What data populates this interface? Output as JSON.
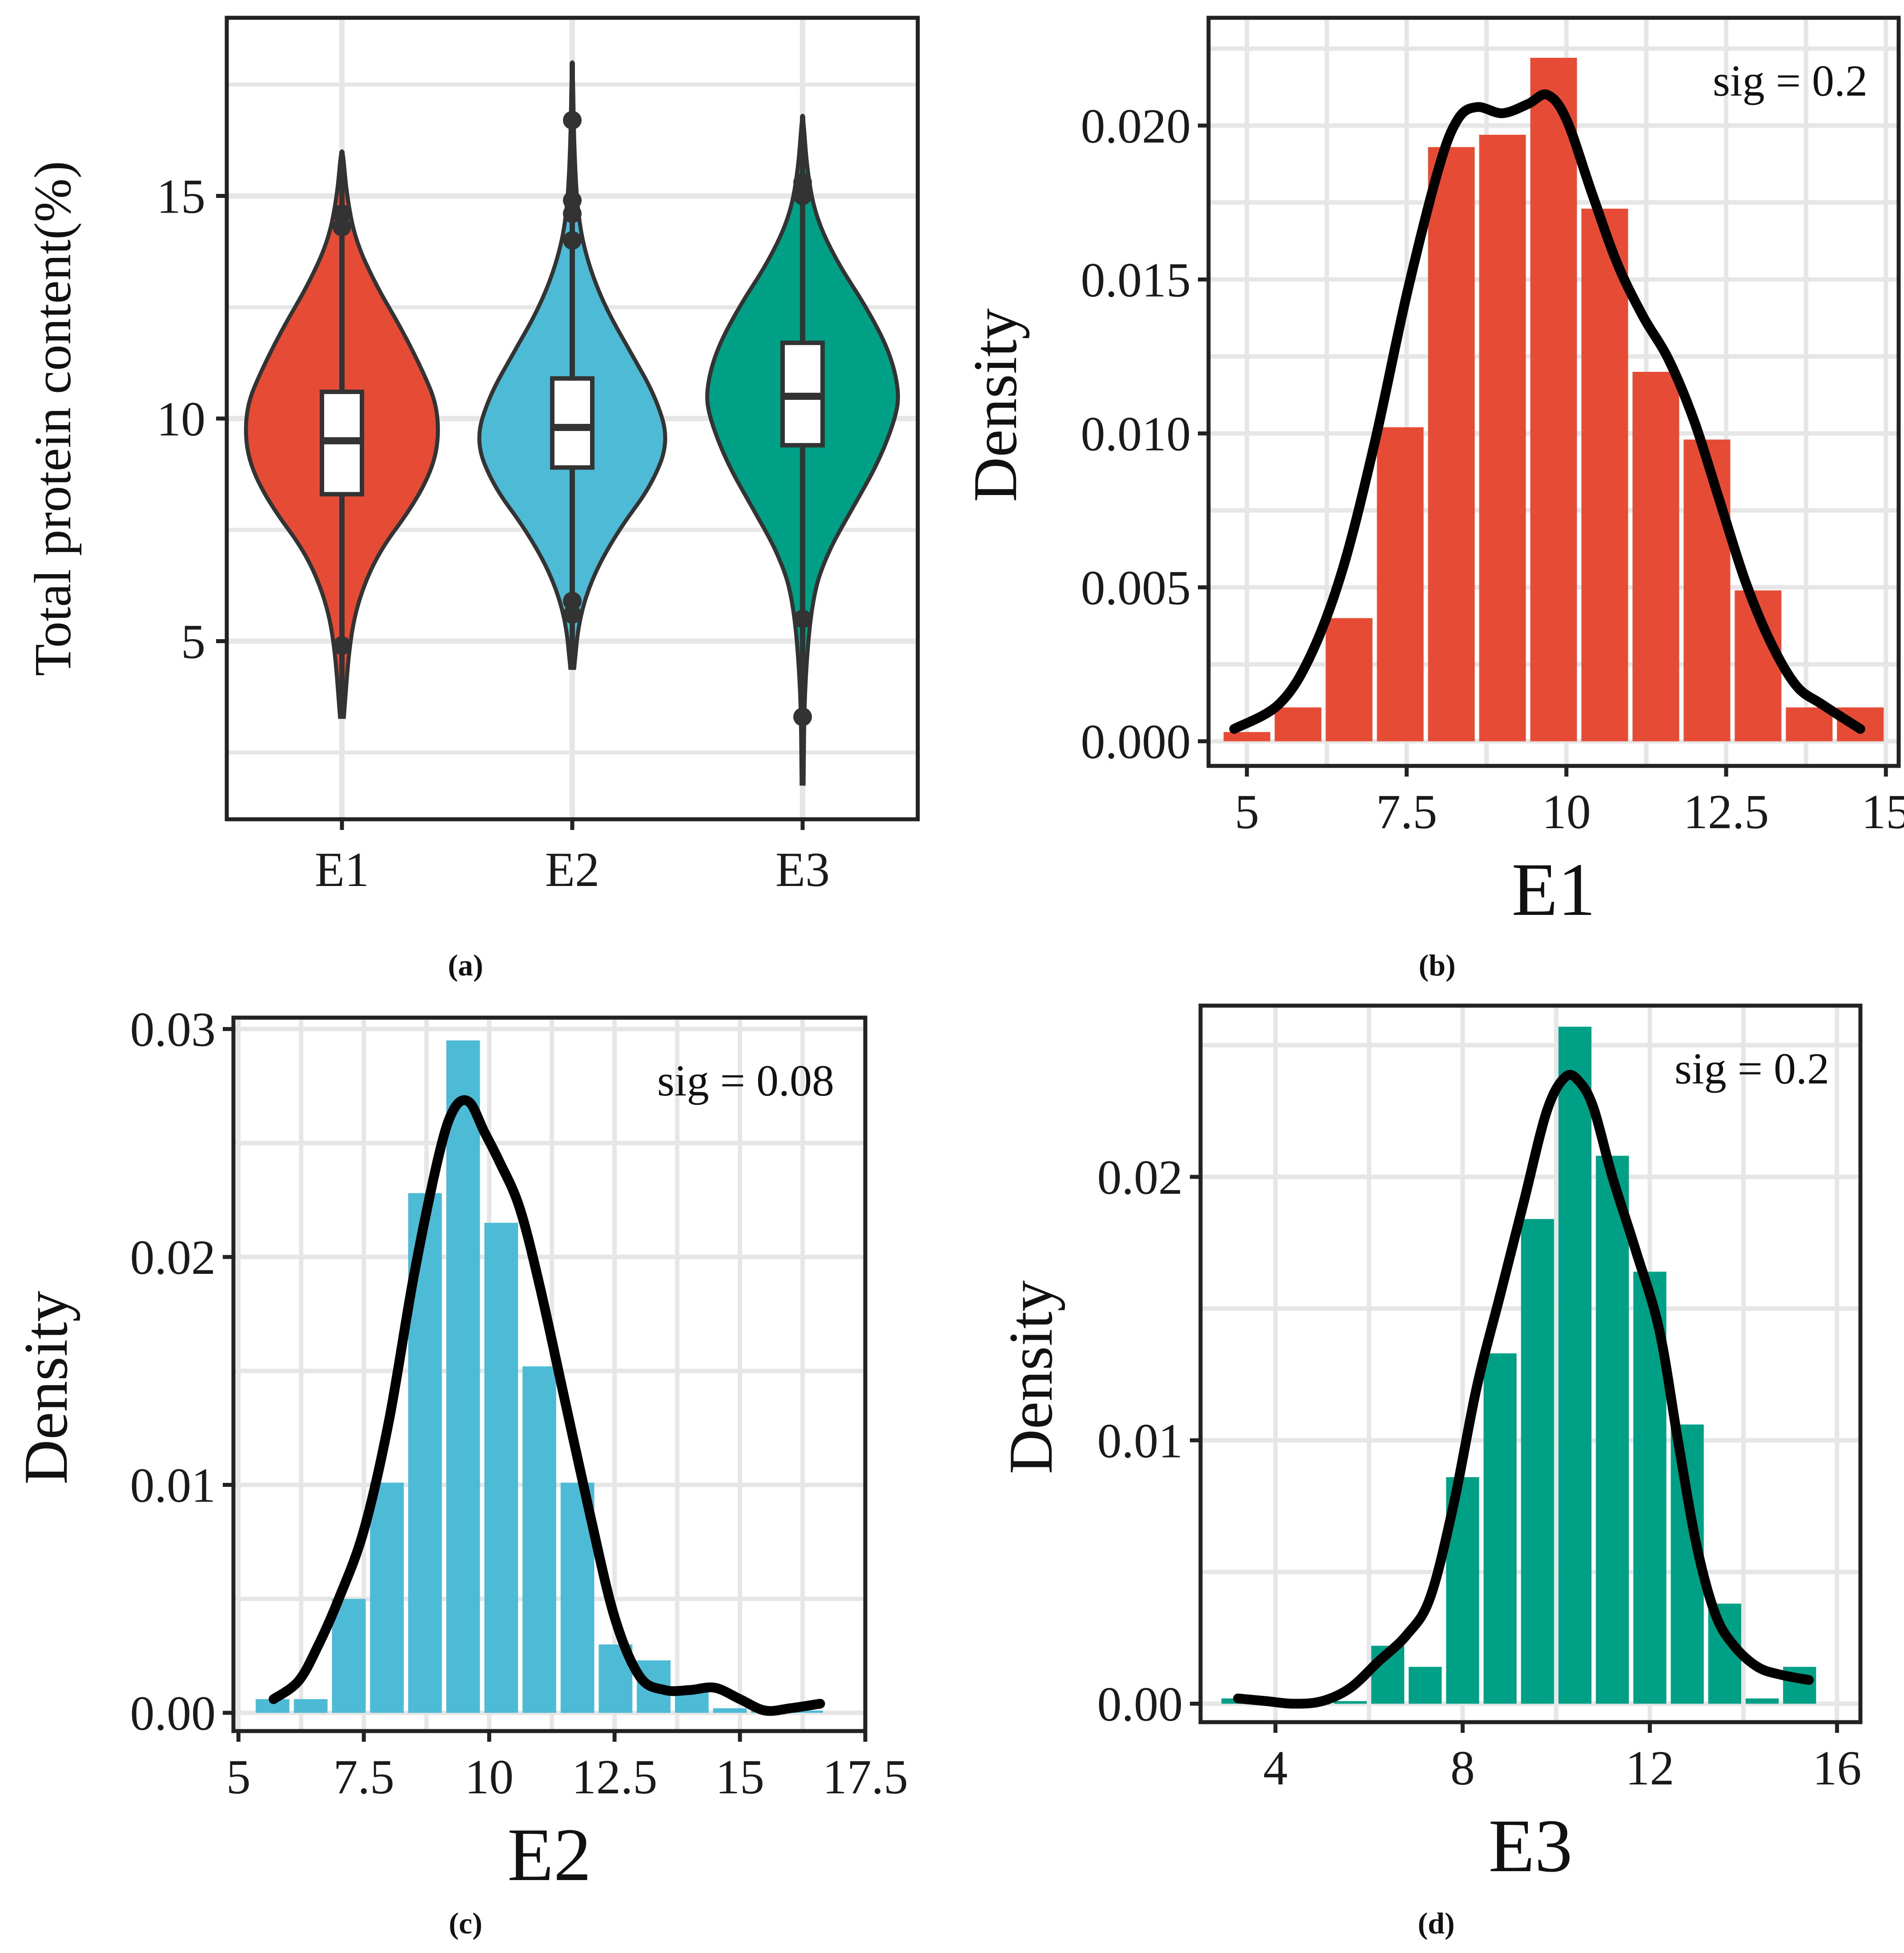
{
  "chart_data": [
    {
      "panel": "a",
      "caption": "(a)",
      "type": "violin",
      "title": "",
      "xlabel": "",
      "ylabel": "Total protein content(%)",
      "ylim": [
        1.0,
        19.0
      ],
      "y_ticks": [
        5,
        10,
        15
      ],
      "grid": true,
      "categories": [
        "E1",
        "E2",
        "E3"
      ],
      "colors": {
        "E1": "#E64B35",
        "E2": "#4DBBD5",
        "E3": "#00A087"
      },
      "groups": [
        {
          "name": "E1",
          "min": 3.3,
          "max": 16.0,
          "q1": 8.3,
          "median": 9.5,
          "q3": 10.6,
          "whisker_low": 5.2,
          "whisker_high": 14.0,
          "outliers": [
            14.3,
            14.6,
            4.9
          ],
          "violin_profile": [
            [
              3.3,
              0.02
            ],
            [
              5.0,
              0.08
            ],
            [
              6.0,
              0.18
            ],
            [
              7.0,
              0.38
            ],
            [
              8.0,
              0.72
            ],
            [
              8.8,
              0.92
            ],
            [
              9.5,
              1.0
            ],
            [
              10.3,
              0.98
            ],
            [
              11.0,
              0.85
            ],
            [
              12.0,
              0.62
            ],
            [
              13.0,
              0.35
            ],
            [
              14.0,
              0.14
            ],
            [
              15.0,
              0.05
            ],
            [
              16.0,
              0.01
            ]
          ]
        },
        {
          "name": "E2",
          "min": 4.4,
          "max": 18.0,
          "q1": 8.9,
          "median": 9.8,
          "q3": 10.9,
          "whisker_low": 5.8,
          "whisker_high": 13.5,
          "outliers": [
            14.0,
            14.6,
            14.9,
            16.7,
            5.6,
            5.9
          ],
          "violin_profile": [
            [
              4.4,
              0.02
            ],
            [
              5.5,
              0.07
            ],
            [
              6.5,
              0.22
            ],
            [
              7.5,
              0.48
            ],
            [
              8.5,
              0.82
            ],
            [
              9.5,
              1.0
            ],
            [
              10.5,
              0.86
            ],
            [
              11.5,
              0.6
            ],
            [
              12.5,
              0.34
            ],
            [
              13.5,
              0.16
            ],
            [
              14.5,
              0.06
            ],
            [
              16.0,
              0.02
            ],
            [
              18.0,
              0.005
            ]
          ]
        },
        {
          "name": "E3",
          "min": 1.8,
          "max": 16.8,
          "q1": 9.4,
          "median": 10.5,
          "q3": 11.7,
          "whisker_low": 6.3,
          "whisker_high": 14.8,
          "outliers": [
            15.0,
            15.3,
            5.5,
            3.3
          ],
          "violin_profile": [
            [
              1.8,
              0.01
            ],
            [
              4.0,
              0.02
            ],
            [
              6.0,
              0.1
            ],
            [
              7.0,
              0.26
            ],
            [
              8.0,
              0.52
            ],
            [
              9.0,
              0.78
            ],
            [
              10.0,
              0.96
            ],
            [
              10.6,
              1.0
            ],
            [
              11.5,
              0.9
            ],
            [
              12.5,
              0.66
            ],
            [
              13.5,
              0.36
            ],
            [
              14.5,
              0.14
            ],
            [
              15.5,
              0.05
            ],
            [
              16.8,
              0.005
            ]
          ]
        }
      ]
    },
    {
      "panel": "b",
      "caption": "(b)",
      "type": "histogram_density",
      "title": "",
      "xlabel": "E1",
      "ylabel": "Density",
      "annotation": "sig = 0.2",
      "color": "#E64B35",
      "xlim": [
        4.4,
        15.2
      ],
      "ylim": [
        -0.0008,
        0.0235
      ],
      "x_ticks": [
        5,
        7.5,
        10,
        12.5,
        15
      ],
      "x_tick_labels": [
        "5",
        "7.5",
        "10",
        "12.5",
        "15"
      ],
      "y_ticks": [
        0.0,
        0.005,
        0.01,
        0.015,
        0.02
      ],
      "y_tick_labels": [
        "0.000",
        "0.005",
        "0.010",
        "0.015",
        "0.020"
      ],
      "bins": [
        {
          "x0": 4.6,
          "x1": 5.4,
          "y": 0.0003
        },
        {
          "x0": 5.4,
          "x1": 6.2,
          "y": 0.0011
        },
        {
          "x0": 6.2,
          "x1": 7.0,
          "y": 0.004
        },
        {
          "x0": 7.0,
          "x1": 7.8,
          "y": 0.0102
        },
        {
          "x0": 7.8,
          "x1": 8.6,
          "y": 0.0193
        },
        {
          "x0": 8.6,
          "x1": 9.4,
          "y": 0.0197
        },
        {
          "x0": 9.4,
          "x1": 10.2,
          "y": 0.0222
        },
        {
          "x0": 10.2,
          "x1": 11.0,
          "y": 0.0173
        },
        {
          "x0": 11.0,
          "x1": 11.8,
          "y": 0.012
        },
        {
          "x0": 11.8,
          "x1": 12.6,
          "y": 0.0098
        },
        {
          "x0": 12.6,
          "x1": 13.4,
          "y": 0.0049
        },
        {
          "x0": 13.4,
          "x1": 14.2,
          "y": 0.0011
        },
        {
          "x0": 14.2,
          "x1": 15.0,
          "y": 0.0011
        }
      ],
      "density_curve": {
        "x": [
          4.8,
          5.5,
          6.0,
          6.5,
          7.0,
          7.5,
          8.0,
          8.3,
          8.6,
          9.0,
          9.4,
          9.7,
          10.0,
          10.4,
          10.8,
          11.2,
          11.6,
          12.0,
          12.4,
          12.8,
          13.2,
          13.6,
          14.0,
          14.6
        ],
        "y": [
          0.0004,
          0.0012,
          0.0028,
          0.0056,
          0.0097,
          0.0145,
          0.0186,
          0.0202,
          0.0206,
          0.0204,
          0.0207,
          0.021,
          0.0202,
          0.0178,
          0.0155,
          0.0138,
          0.0124,
          0.0104,
          0.0078,
          0.0052,
          0.0032,
          0.0018,
          0.0012,
          0.0004
        ]
      }
    },
    {
      "panel": "c",
      "caption": "(c)",
      "type": "histogram_density",
      "title": "",
      "xlabel": "E2",
      "ylabel": "Density",
      "annotation": "sig = 0.08",
      "color": "#4DBBD5",
      "xlim": [
        4.9,
        17.5
      ],
      "ylim": [
        -0.0008,
        0.0305
      ],
      "x_ticks": [
        5,
        7.5,
        10,
        12.5,
        15,
        17.5
      ],
      "x_tick_labels": [
        "5",
        "7.5",
        "10",
        "12.5",
        "15",
        "17.5"
      ],
      "y_ticks": [
        0.0,
        0.01,
        0.02,
        0.03
      ],
      "y_tick_labels": [
        "0.00",
        "0.01",
        "0.02",
        "0.03"
      ],
      "bins": [
        {
          "x0": 5.3,
          "x1": 6.06,
          "y": 0.0006
        },
        {
          "x0": 6.06,
          "x1": 6.82,
          "y": 0.0006
        },
        {
          "x0": 6.82,
          "x1": 7.58,
          "y": 0.005
        },
        {
          "x0": 7.58,
          "x1": 8.34,
          "y": 0.0101
        },
        {
          "x0": 8.34,
          "x1": 9.1,
          "y": 0.0228
        },
        {
          "x0": 9.1,
          "x1": 9.86,
          "y": 0.0295
        },
        {
          "x0": 9.86,
          "x1": 10.62,
          "y": 0.0215
        },
        {
          "x0": 10.62,
          "x1": 11.38,
          "y": 0.0152
        },
        {
          "x0": 11.38,
          "x1": 12.14,
          "y": 0.0101
        },
        {
          "x0": 12.14,
          "x1": 12.9,
          "y": 0.003
        },
        {
          "x0": 12.9,
          "x1": 13.66,
          "y": 0.0023
        },
        {
          "x0": 13.66,
          "x1": 14.42,
          "y": 0.001
        },
        {
          "x0": 14.42,
          "x1": 15.18,
          "y": 0.0002
        },
        {
          "x0": 15.18,
          "x1": 15.94,
          "y": 0.0001
        },
        {
          "x0": 15.94,
          "x1": 16.7,
          "y": 0.0001
        }
      ],
      "density_curve": {
        "x": [
          5.7,
          6.2,
          6.6,
          7.0,
          7.5,
          8.0,
          8.5,
          9.0,
          9.3,
          9.6,
          9.9,
          10.2,
          10.6,
          11.0,
          11.5,
          12.0,
          12.5,
          13.0,
          13.5,
          14.0,
          14.5,
          15.0,
          15.5,
          16.0,
          16.6
        ],
        "y": [
          0.0006,
          0.0014,
          0.003,
          0.005,
          0.008,
          0.0128,
          0.0192,
          0.0245,
          0.0265,
          0.0268,
          0.0255,
          0.0242,
          0.0222,
          0.0188,
          0.0138,
          0.0088,
          0.0042,
          0.0016,
          0.001,
          0.001,
          0.0011,
          0.0006,
          0.0001,
          0.0002,
          0.0004
        ]
      }
    },
    {
      "panel": "d",
      "caption": "(d)",
      "type": "histogram_density",
      "title": "",
      "xlabel": "E3",
      "ylabel": "Density",
      "annotation": "sig = 0.2",
      "color": "#00A087",
      "xlim": [
        2.4,
        16.5
      ],
      "ylim": [
        -0.0007,
        0.0265
      ],
      "x_ticks": [
        4,
        8,
        12,
        16
      ],
      "x_tick_labels": [
        "4",
        "8",
        "12",
        "16"
      ],
      "y_ticks": [
        0.0,
        0.01,
        0.02
      ],
      "y_tick_labels": [
        "0.00",
        "0.01",
        "0.02"
      ],
      "bins": [
        {
          "x0": 2.8,
          "x1": 3.6,
          "y": 0.0002
        },
        {
          "x0": 3.6,
          "x1": 4.4,
          "y": 0.0
        },
        {
          "x0": 4.4,
          "x1": 5.2,
          "y": 0.0
        },
        {
          "x0": 5.2,
          "x1": 6.0,
          "y": 0.0001
        },
        {
          "x0": 6.0,
          "x1": 6.8,
          "y": 0.0022
        },
        {
          "x0": 6.8,
          "x1": 7.6,
          "y": 0.0014
        },
        {
          "x0": 7.6,
          "x1": 8.4,
          "y": 0.0086
        },
        {
          "x0": 8.4,
          "x1": 9.2,
          "y": 0.0133
        },
        {
          "x0": 9.2,
          "x1": 10.0,
          "y": 0.0184
        },
        {
          "x0": 10.0,
          "x1": 10.8,
          "y": 0.0257
        },
        {
          "x0": 10.8,
          "x1": 11.6,
          "y": 0.0208
        },
        {
          "x0": 11.6,
          "x1": 12.4,
          "y": 0.0164
        },
        {
          "x0": 12.4,
          "x1": 13.2,
          "y": 0.0106
        },
        {
          "x0": 13.2,
          "x1": 14.0,
          "y": 0.0038
        },
        {
          "x0": 14.0,
          "x1": 14.8,
          "y": 0.0002
        },
        {
          "x0": 14.8,
          "x1": 15.6,
          "y": 0.0014
        }
      ],
      "density_curve": {
        "x": [
          3.2,
          3.8,
          4.4,
          5.0,
          5.6,
          6.2,
          6.8,
          7.3,
          7.8,
          8.3,
          8.8,
          9.3,
          9.8,
          10.2,
          10.5,
          10.8,
          11.2,
          11.7,
          12.2,
          12.6,
          13.0,
          13.4,
          13.8,
          14.3,
          14.8,
          15.4
        ],
        "y": [
          0.0002,
          0.0001,
          0.0,
          0.0001,
          0.0006,
          0.0016,
          0.0026,
          0.004,
          0.0075,
          0.012,
          0.0155,
          0.019,
          0.0225,
          0.0238,
          0.0236,
          0.0226,
          0.02,
          0.0172,
          0.0142,
          0.01,
          0.006,
          0.0034,
          0.0022,
          0.0014,
          0.0011,
          0.0009
        ]
      }
    }
  ]
}
